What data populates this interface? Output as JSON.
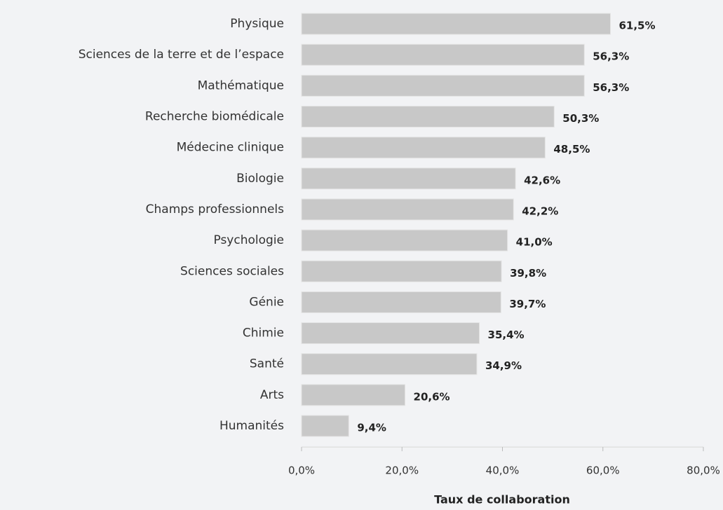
{
  "chart_data": {
    "type": "bar",
    "orientation": "horizontal",
    "categories": [
      "Physique",
      "Sciences de la terre et de l’espace",
      "Mathématique",
      "Recherche biomédicale",
      "Médecine clinique",
      "Biologie",
      "Champs professionnels",
      "Psychologie",
      "Sciences sociales",
      "Génie",
      "Chimie",
      "Santé",
      "Arts",
      "Humanités"
    ],
    "values": [
      61.5,
      56.3,
      56.3,
      50.3,
      48.5,
      42.6,
      42.2,
      41.0,
      39.8,
      39.7,
      35.4,
      34.9,
      20.6,
      9.4
    ],
    "value_labels": [
      "61,5%",
      "56,3%",
      "56,3%",
      "50,3%",
      "48,5%",
      "42,6%",
      "42,2%",
      "41,0%",
      "39,8%",
      "39,7%",
      "35,4%",
      "34,9%",
      "20,6%",
      "9,4%"
    ],
    "color": "#c8c8c8",
    "xlabel": "Taux de collaboration",
    "xlim": [
      0,
      80
    ],
    "xticks": [
      {
        "value": 0,
        "label": "0,0%"
      },
      {
        "value": 20,
        "label": "20,0%"
      },
      {
        "value": 40,
        "label": "40,0%"
      },
      {
        "value": 60,
        "label": "60,0%"
      },
      {
        "value": 80,
        "label": "80,0%"
      }
    ]
  }
}
